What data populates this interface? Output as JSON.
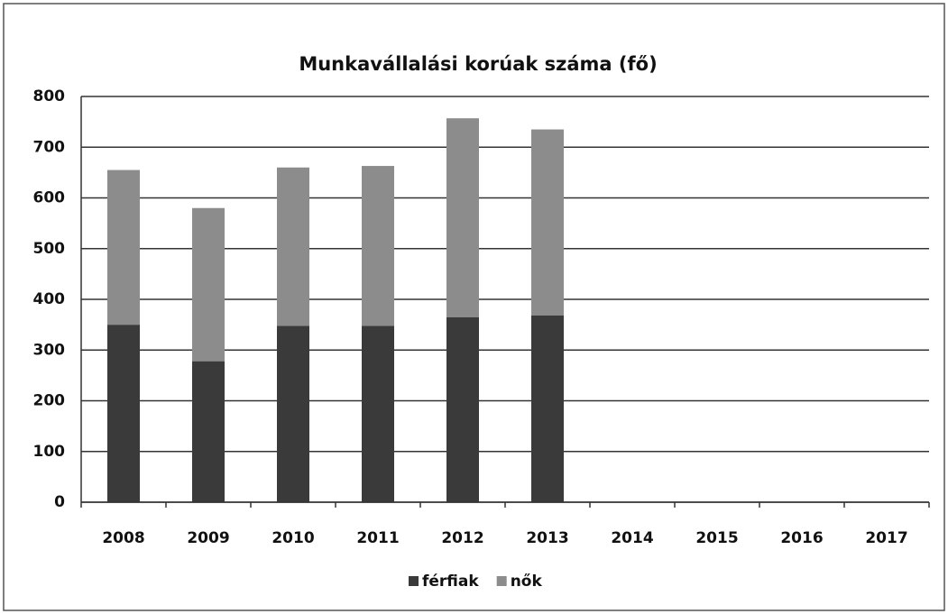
{
  "chart_data": {
    "type": "stacked-bar",
    "title": "Munkavállalási korúak száma (fő)",
    "categories": [
      "2008",
      "2009",
      "2010",
      "2011",
      "2012",
      "2013",
      "2014",
      "2015",
      "2016",
      "2017"
    ],
    "series": [
      {
        "name": "férfiak",
        "color": "#3a3a3a",
        "values": [
          350,
          278,
          348,
          348,
          365,
          368,
          null,
          null,
          null,
          null
        ]
      },
      {
        "name": "nők",
        "color": "#8c8c8c",
        "values": [
          305,
          302,
          312,
          315,
          392,
          367,
          null,
          null,
          null,
          null
        ]
      }
    ],
    "ylim": [
      0,
      800
    ],
    "yticks": [
      0,
      100,
      200,
      300,
      400,
      500,
      600,
      700,
      800
    ],
    "grid": true,
    "legend": "bottom"
  }
}
